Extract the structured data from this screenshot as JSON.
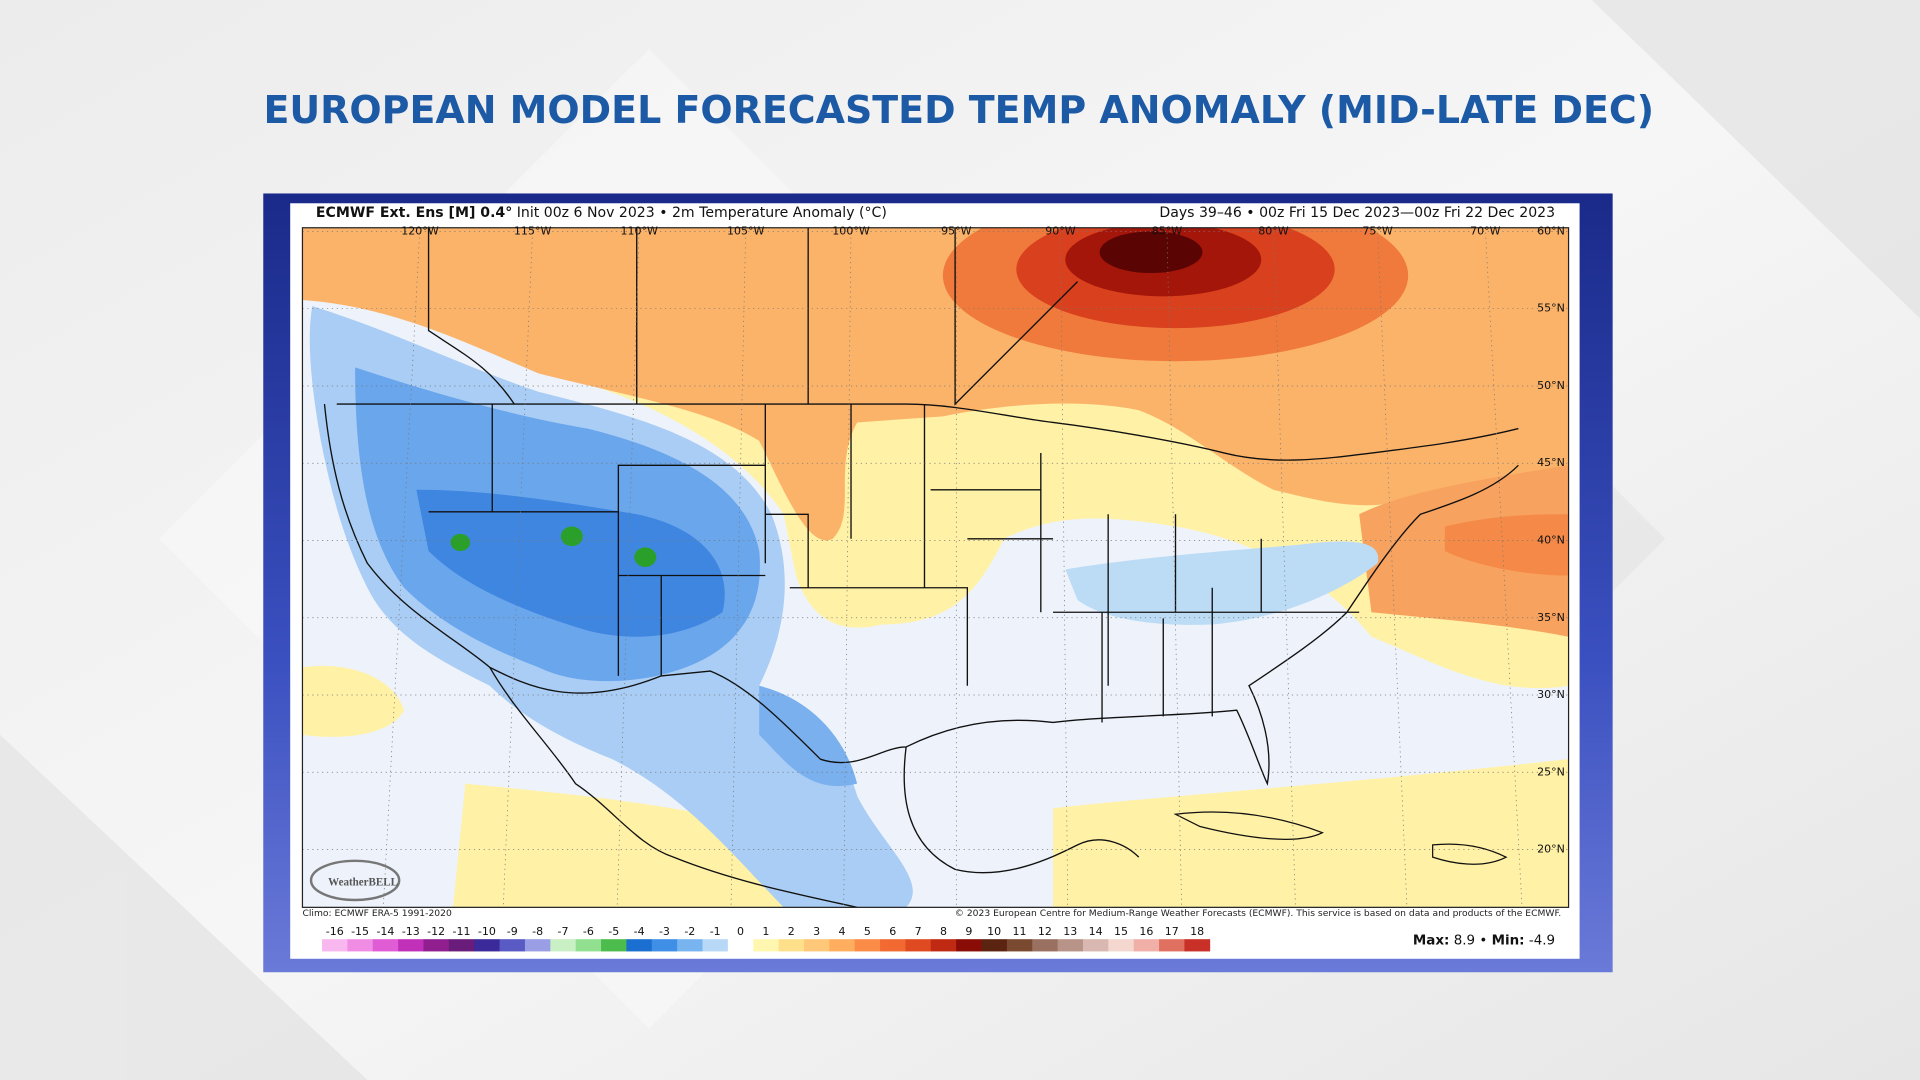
{
  "title": "EUROPEAN MODEL FORECASTED TEMP ANOMALY (MID-LATE DEC)",
  "map": {
    "header_title": "ECMWF Ext. Ens [M] 0.4°",
    "header_detail": "Init 00z 6 Nov 2023 • 2m Temperature Anomaly (°C)",
    "header_right": "Days 39–46 • 00z Fri 15 Dec 2023—00z Fri 22 Dec 2023",
    "longitude_labels": [
      "120°W",
      "115°W",
      "110°W",
      "105°W",
      "100°W",
      "95°W",
      "90°W",
      "85°W",
      "80°W",
      "75°W",
      "70°W"
    ],
    "latitude_labels": [
      "60°N",
      "55°N",
      "50°N",
      "45°N",
      "40°N",
      "35°N",
      "30°N",
      "25°N",
      "20°N"
    ],
    "credit_left": "Climo: ECMWF ERA-5 1991-2020",
    "credit_right": "© 2023 European Centre for Medium-Range Weather Forecasts (ECMWF). This service is based on data and products of the ECMWF.",
    "logo": "WeatherBELL"
  },
  "colorbar": {
    "labels": [
      -16,
      -15,
      -14,
      -13,
      -12,
      -11,
      -10,
      -9,
      -8,
      -7,
      -6,
      -5,
      -4,
      -3,
      -2,
      -1,
      0,
      1,
      2,
      3,
      4,
      5,
      6,
      7,
      8,
      9,
      10,
      11,
      12,
      13,
      14,
      15,
      16,
      17,
      18
    ],
    "colors": [
      "#f9b7ef",
      "#f08ce4",
      "#e05cd4",
      "#c030b8",
      "#901e8e",
      "#6a1c7a",
      "#3a2a9a",
      "#5a5ac4",
      "#9a9ee4",
      "#c8f0c4",
      "#90e090",
      "#4cbc4c",
      "#1a6fd0",
      "#3f8fe6",
      "#78b4f0",
      "#b8d8f8",
      "#ffffff",
      "#fff7b0",
      "#ffe08a",
      "#ffc878",
      "#ffad5e",
      "#fb8c48",
      "#f26a32",
      "#e04a20",
      "#c02a12",
      "#8a0c06",
      "#5a2410",
      "#7a4a30",
      "#9a7060",
      "#b89488",
      "#d8b8b0",
      "#f4d8d0",
      "#f0b0a8",
      "#e07060",
      "#c83028"
    ]
  },
  "stats": {
    "max_label": "Max:",
    "max": 8.9,
    "separator": "•",
    "min_label": "Min:",
    "min": -4.9
  }
}
